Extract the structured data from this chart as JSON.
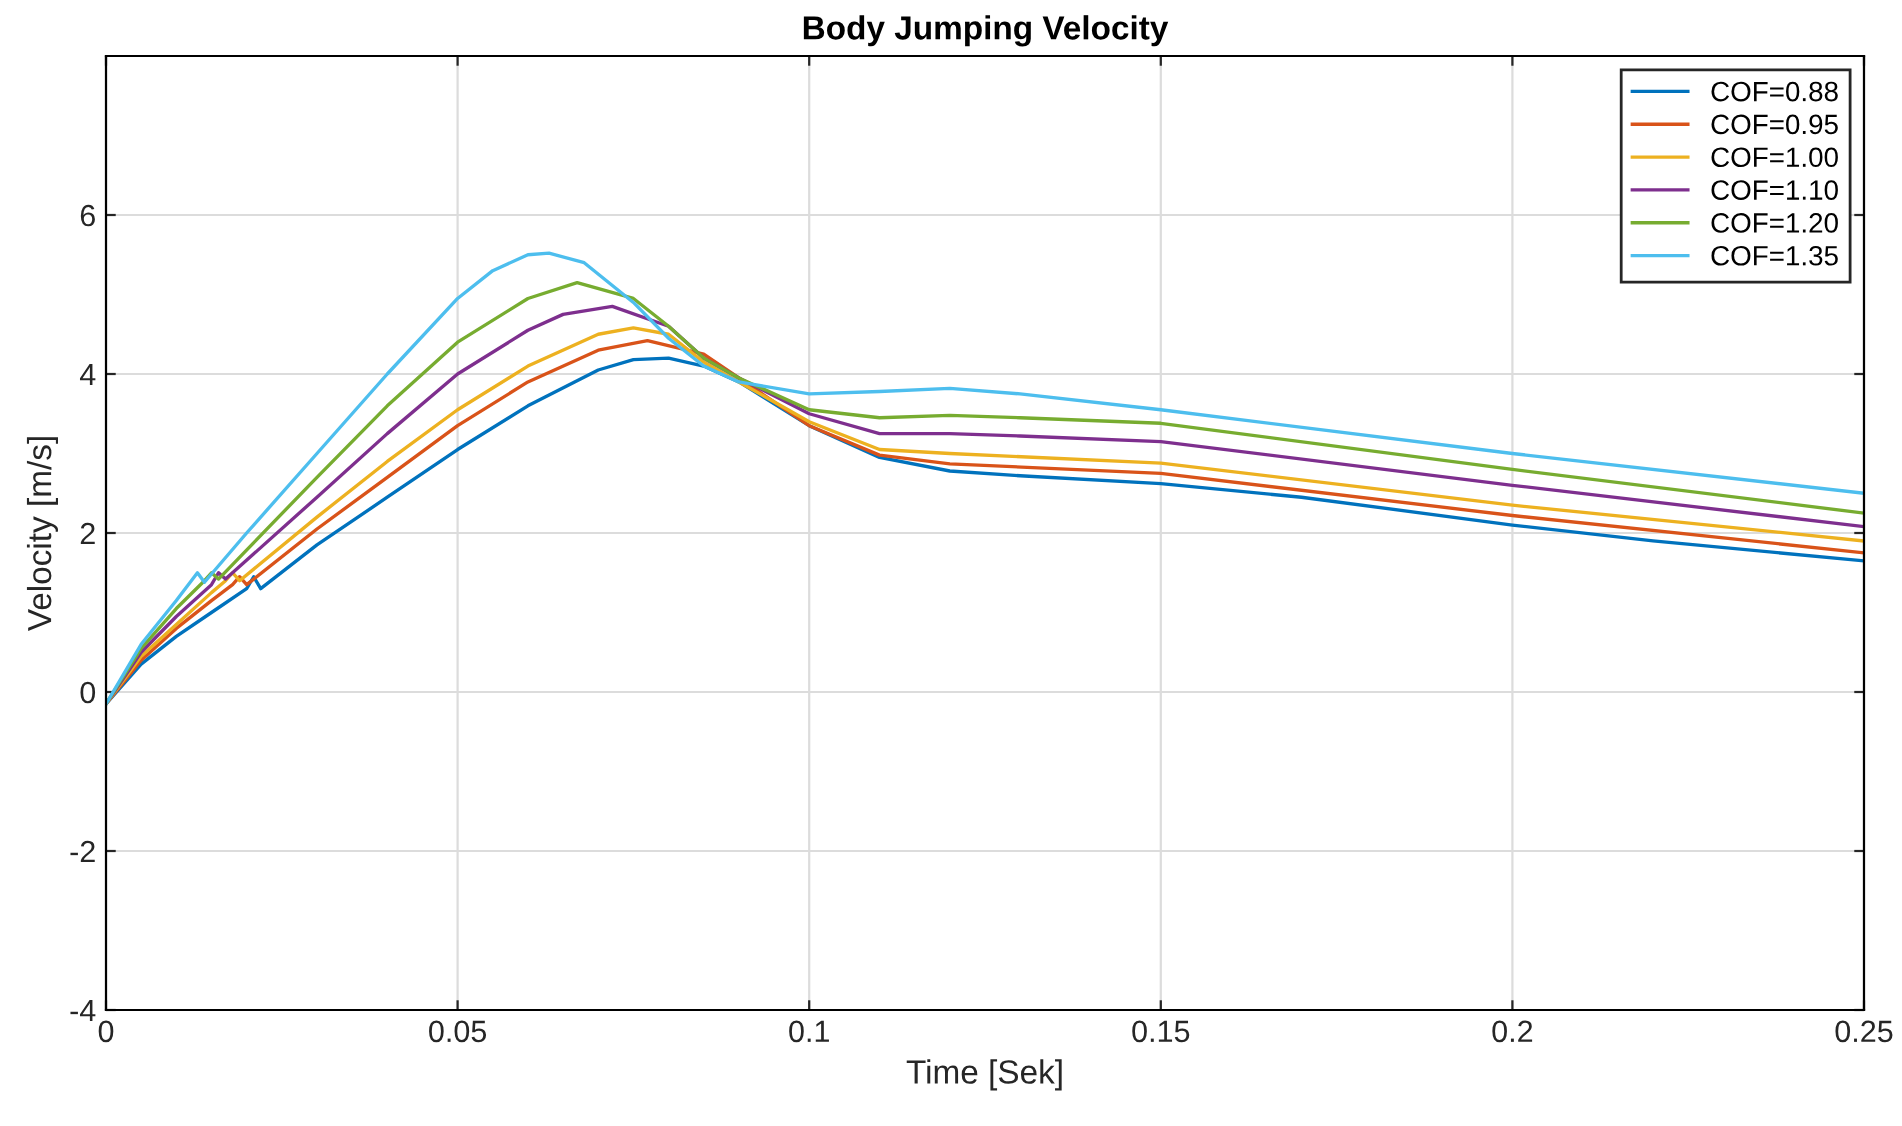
{
  "chart_data": {
    "type": "line",
    "title": "Body Jumping Velocity",
    "xlabel": "Time [Sek]",
    "ylabel": "Velocity [m/s]",
    "xlim": [
      0,
      0.25
    ],
    "ylim": [
      -4,
      8
    ],
    "xticks": [
      0,
      0.05,
      0.1,
      0.15,
      0.2,
      0.25
    ],
    "yticks": [
      -4,
      -2,
      0,
      2,
      4,
      6
    ],
    "grid": true,
    "legend": "top right",
    "series": [
      {
        "name": "COF=0.88",
        "color": "#0072bd",
        "x": [
          0,
          0.005,
          0.01,
          0.015,
          0.02,
          0.021,
          0.022,
          0.03,
          0.04,
          0.05,
          0.06,
          0.07,
          0.075,
          0.08,
          0.085,
          0.09,
          0.1,
          0.11,
          0.12,
          0.13,
          0.15,
          0.17,
          0.2,
          0.22,
          0.25
        ],
        "values": [
          -0.15,
          0.35,
          0.7,
          1.0,
          1.3,
          1.45,
          1.3,
          1.85,
          2.45,
          3.05,
          3.6,
          4.05,
          4.18,
          4.2,
          4.1,
          3.9,
          3.35,
          2.95,
          2.78,
          2.72,
          2.62,
          2.45,
          2.1,
          1.9,
          1.65
        ]
      },
      {
        "name": "COF=0.95",
        "color": "#d95319",
        "x": [
          0,
          0.005,
          0.01,
          0.015,
          0.018,
          0.019,
          0.02,
          0.03,
          0.04,
          0.05,
          0.06,
          0.07,
          0.077,
          0.085,
          0.09,
          0.1,
          0.11,
          0.12,
          0.15,
          0.2,
          0.25
        ],
        "values": [
          -0.15,
          0.4,
          0.8,
          1.15,
          1.35,
          1.45,
          1.35,
          2.05,
          2.7,
          3.35,
          3.9,
          4.3,
          4.42,
          4.25,
          3.95,
          3.35,
          2.98,
          2.87,
          2.75,
          2.22,
          1.75
        ]
      },
      {
        "name": "COF=1.00",
        "color": "#edb120",
        "x": [
          0,
          0.005,
          0.01,
          0.015,
          0.017,
          0.018,
          0.019,
          0.03,
          0.04,
          0.05,
          0.06,
          0.07,
          0.075,
          0.08,
          0.085,
          0.09,
          0.1,
          0.11,
          0.12,
          0.15,
          0.2,
          0.25
        ],
        "values": [
          -0.15,
          0.45,
          0.85,
          1.25,
          1.4,
          1.5,
          1.4,
          2.2,
          2.9,
          3.55,
          4.1,
          4.5,
          4.58,
          4.5,
          4.15,
          3.9,
          3.4,
          3.05,
          3.0,
          2.88,
          2.35,
          1.9
        ]
      },
      {
        "name": "COF=1.10",
        "color": "#7e2f8e",
        "x": [
          0,
          0.005,
          0.01,
          0.015,
          0.016,
          0.017,
          0.03,
          0.04,
          0.05,
          0.06,
          0.065,
          0.072,
          0.08,
          0.085,
          0.09,
          0.1,
          0.11,
          0.12,
          0.13,
          0.15,
          0.2,
          0.25
        ],
        "values": [
          -0.15,
          0.5,
          0.95,
          1.35,
          1.5,
          1.42,
          2.45,
          3.25,
          4.0,
          4.55,
          4.75,
          4.85,
          4.6,
          4.2,
          3.95,
          3.5,
          3.25,
          3.25,
          3.22,
          3.15,
          2.6,
          2.08
        ]
      },
      {
        "name": "COF=1.20",
        "color": "#77ac30",
        "x": [
          0,
          0.005,
          0.01,
          0.014,
          0.015,
          0.016,
          0.03,
          0.04,
          0.05,
          0.06,
          0.067,
          0.075,
          0.08,
          0.085,
          0.09,
          0.1,
          0.11,
          0.12,
          0.13,
          0.15,
          0.2,
          0.25
        ],
        "values": [
          -0.15,
          0.55,
          1.05,
          1.4,
          1.5,
          1.42,
          2.7,
          3.6,
          4.4,
          4.95,
          5.15,
          4.95,
          4.6,
          4.2,
          3.95,
          3.55,
          3.45,
          3.48,
          3.45,
          3.38,
          2.8,
          2.25
        ]
      },
      {
        "name": "COF=1.35",
        "color": "#4dbeee",
        "x": [
          0,
          0.005,
          0.01,
          0.013,
          0.014,
          0.02,
          0.03,
          0.04,
          0.05,
          0.055,
          0.06,
          0.063,
          0.068,
          0.075,
          0.08,
          0.085,
          0.09,
          0.1,
          0.11,
          0.12,
          0.13,
          0.15,
          0.2,
          0.25
        ],
        "values": [
          -0.15,
          0.6,
          1.15,
          1.5,
          1.38,
          2.0,
          3.0,
          4.0,
          4.95,
          5.3,
          5.5,
          5.52,
          5.4,
          4.9,
          4.45,
          4.1,
          3.9,
          3.75,
          3.78,
          3.82,
          3.75,
          3.55,
          3.0,
          2.5
        ]
      }
    ]
  }
}
